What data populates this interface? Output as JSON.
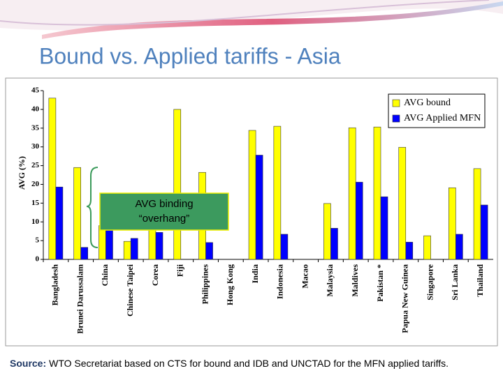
{
  "chart_data": {
    "type": "bar",
    "title": "Bound vs. Applied tariffs - Asia",
    "y_label": "AVG (%)",
    "categories": [
      "Bangladesh",
      "Brunei Darussalam",
      "China",
      "Chinese Taipei",
      "Corea",
      "Fiji",
      "Philippines",
      "Hong Kong",
      "India",
      "Indonesia",
      "Macao",
      "Malaysia",
      "Maldives",
      "Pakistan *",
      "Papua New Guinea",
      "Singapore",
      "Sri Lanka",
      "Thailand"
    ],
    "series": [
      {
        "name": "AVG bound",
        "color": "#ffff00",
        "values": [
          43,
          24.5,
          9,
          4.8,
          9.3,
          40,
          23.2,
          0,
          34.4,
          35.5,
          0,
          14.9,
          35.1,
          35.3,
          29.9,
          6.3,
          19.1,
          24.2
        ]
      },
      {
        "name": "AVG Applied MFN",
        "color": "#0000ff",
        "values": [
          19.3,
          3.2,
          7.8,
          5.6,
          7.2,
          null,
          4.5,
          0,
          27.8,
          6.7,
          0,
          8.3,
          20.6,
          16.7,
          4.6,
          0,
          6.7,
          14.5
        ]
      }
    ],
    "ylim": [
      0,
      45
    ],
    "yticks": [
      0,
      5,
      10,
      15,
      20,
      25,
      30,
      35,
      40,
      45
    ],
    "legend": "top-right",
    "annotation": [
      "AVG binding",
      "“overhang”"
    ],
    "source": {
      "label": "Source:",
      "text": "WTO Secretariat based on CTS for bound and  IDB and UNCTAD for the MFN applied tariffs."
    }
  }
}
